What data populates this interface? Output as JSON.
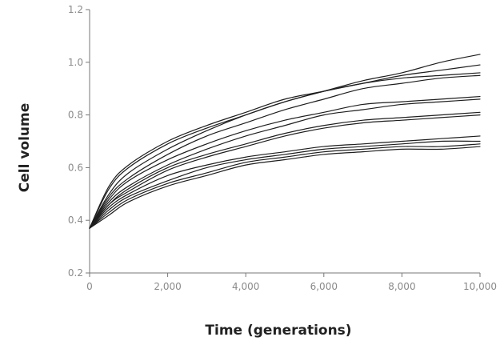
{
  "chart_data": {
    "type": "line",
    "title": "",
    "xlabel": "Time (generations)",
    "ylabel": "Cell volume",
    "xlim": [
      0,
      10000
    ],
    "ylim": [
      0.2,
      1.2
    ],
    "grid": false,
    "x_ticks": [
      0,
      2000,
      4000,
      6000,
      8000,
      10000
    ],
    "x_tick_labels": [
      "0",
      "2,000",
      "4,000",
      "6,000",
      "8,000",
      "10,000"
    ],
    "y_ticks": [
      0.2,
      0.4,
      0.6,
      0.8,
      1.0,
      1.2
    ],
    "y_tick_labels": [
      "0.2",
      "0.4",
      "0.6",
      "0.8",
      "1.0",
      "1.2"
    ],
    "x": [
      0,
      500,
      1000,
      2000,
      3000,
      4000,
      5000,
      6000,
      7000,
      8000,
      9000,
      10000
    ],
    "series": [
      {
        "values": [
          0.37,
          0.52,
          0.6,
          0.69,
          0.75,
          0.8,
          0.85,
          0.89,
          0.93,
          0.96,
          1.0,
          1.03
        ]
      },
      {
        "values": [
          0.37,
          0.53,
          0.61,
          0.7,
          0.76,
          0.81,
          0.86,
          0.89,
          0.92,
          0.95,
          0.97,
          0.99
        ]
      },
      {
        "values": [
          0.37,
          0.5,
          0.58,
          0.67,
          0.74,
          0.8,
          0.85,
          0.89,
          0.92,
          0.94,
          0.95,
          0.96
        ]
      },
      {
        "values": [
          0.37,
          0.49,
          0.56,
          0.65,
          0.72,
          0.77,
          0.82,
          0.86,
          0.9,
          0.92,
          0.94,
          0.95
        ]
      },
      {
        "values": [
          0.37,
          0.48,
          0.55,
          0.63,
          0.69,
          0.74,
          0.78,
          0.81,
          0.84,
          0.85,
          0.86,
          0.87
        ]
      },
      {
        "values": [
          0.37,
          0.47,
          0.53,
          0.61,
          0.67,
          0.72,
          0.76,
          0.8,
          0.82,
          0.84,
          0.85,
          0.86
        ]
      },
      {
        "values": [
          0.37,
          0.46,
          0.52,
          0.6,
          0.65,
          0.69,
          0.73,
          0.76,
          0.78,
          0.79,
          0.8,
          0.81
        ]
      },
      {
        "values": [
          0.37,
          0.46,
          0.51,
          0.59,
          0.64,
          0.68,
          0.72,
          0.75,
          0.77,
          0.78,
          0.79,
          0.8
        ]
      },
      {
        "values": [
          0.37,
          0.45,
          0.5,
          0.57,
          0.61,
          0.64,
          0.66,
          0.68,
          0.69,
          0.7,
          0.71,
          0.72
        ]
      },
      {
        "values": [
          0.37,
          0.44,
          0.49,
          0.55,
          0.6,
          0.63,
          0.65,
          0.67,
          0.68,
          0.69,
          0.7,
          0.7
        ]
      },
      {
        "values": [
          0.37,
          0.43,
          0.48,
          0.54,
          0.58,
          0.62,
          0.64,
          0.66,
          0.67,
          0.68,
          0.68,
          0.69
        ]
      },
      {
        "values": [
          0.37,
          0.42,
          0.47,
          0.53,
          0.57,
          0.61,
          0.63,
          0.65,
          0.66,
          0.67,
          0.67,
          0.68
        ]
      }
    ]
  }
}
